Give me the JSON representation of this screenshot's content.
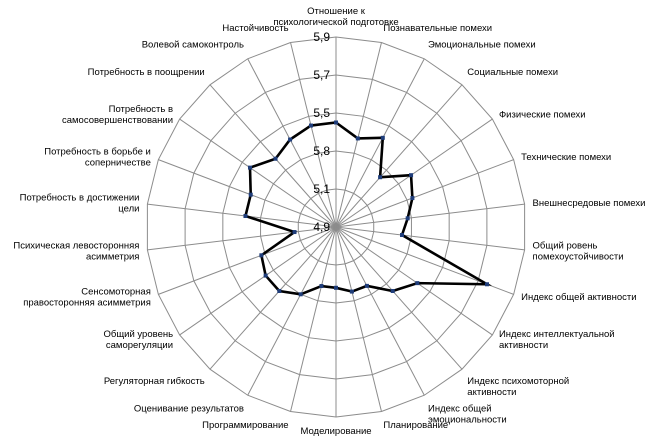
{
  "chart_data": {
    "type": "radar",
    "title": "",
    "ticks": [
      "4,9",
      "5,1",
      "5,8",
      "5,5",
      "5,7",
      "5,9"
    ],
    "categories": [
      {
        "lines": [
          "Отношение к",
          "психологической подготовке"
        ],
        "value": 5.45
      },
      {
        "lines": [
          "Познавательные помехи"
        ],
        "value": 5.38
      },
      {
        "lines": [
          "Эмоциональные помехи"
        ],
        "value": 5.43
      },
      {
        "lines": [
          "Социальные помехи"
        ],
        "value": 5.25
      },
      {
        "lines": [
          "Физические помехи"
        ],
        "value": 5.38
      },
      {
        "lines": [
          "Технические помехи"
        ],
        "value": 5.33
      },
      {
        "lines": [
          "Внешнесредовые помехи"
        ],
        "value": 5.28
      },
      {
        "lines": [
          "Общий ровень",
          "помехоустойчивости"
        ],
        "value": 5.25
      },
      {
        "lines": [
          "Индекс общей активности"
        ],
        "value": 5.75
      },
      {
        "lines": [
          "Индекс интеллектуальной",
          "активности"
        ],
        "value": 5.42
      },
      {
        "lines": [
          "Индекс психомоторной",
          "активности"
        ],
        "value": 5.35
      },
      {
        "lines": [
          "Индекс общей",
          "эмоциональности"
        ],
        "value": 5.25
      },
      {
        "lines": [
          "Планирование"
        ],
        "value": 5.25
      },
      {
        "lines": [
          "Моделирование"
        ],
        "value": 5.22
      },
      {
        "lines": [
          "Программирование"
        ],
        "value": 5.22
      },
      {
        "lines": [
          "Оценивание результатов"
        ],
        "value": 5.3
      },
      {
        "lines": [
          "Регуляторная гибкость"
        ],
        "value": 5.35
      },
      {
        "lines": [
          "Общий уровень",
          "саморегуляции"
        ],
        "value": 5.35
      },
      {
        "lines": [
          "Сенсомоторная",
          "правосторонняя асимметрия"
        ],
        "value": 5.32
      },
      {
        "lines": [
          "Психическая левосторонняя",
          "асимметрия"
        ],
        "value": 5.12
      },
      {
        "lines": [
          "Потребность в достижении",
          "цели"
        ],
        "value": 5.38
      },
      {
        "lines": [
          "Потребность в борьбе и",
          "соперничестве"
        ],
        "value": 5.38
      },
      {
        "lines": [
          "Потребность в",
          "самосовершенствовании"
        ],
        "value": 5.45
      },
      {
        "lines": [
          "Потребность в поощрении"
        ],
        "value": 5.38
      },
      {
        "lines": [
          "Волевой самоконтроль"
        ],
        "value": 5.42
      },
      {
        "lines": [
          "Настойчивость"
        ],
        "value": 5.45
      }
    ],
    "rmin": 4.9,
    "rmax": 5.9,
    "rings": 5,
    "line_color": "#000000",
    "marker_color": "#1f3d7a",
    "grid_color": "#8c8c8c"
  }
}
